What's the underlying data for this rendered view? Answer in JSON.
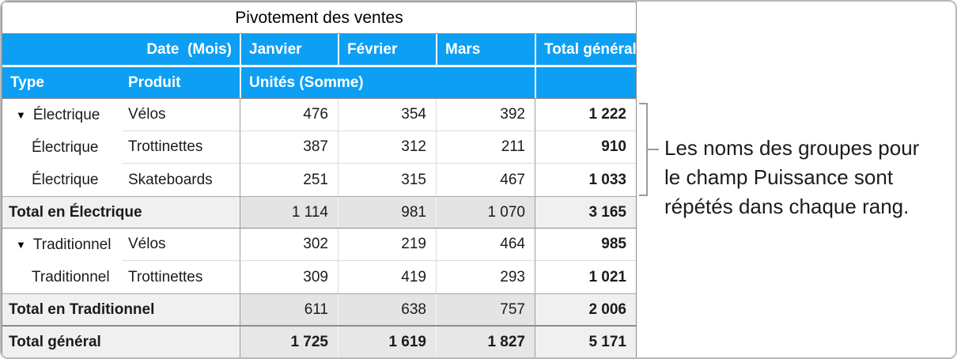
{
  "colors": {
    "header_blue": "#0d9ff4",
    "subtotal_month_bg": "#e4e4e5",
    "subtotal_label_bg": "#f0f0f0",
    "grand_month_bg": "#e7e7e8",
    "border_strong": "#8d8d8d",
    "border_medium": "#9e9e9e",
    "border_light": "#dcdcdc",
    "bracket_gray": "#9a9a9a",
    "text_dark": "#1b1b1b"
  },
  "table": {
    "title": "Pivotement des ventes",
    "disclosure": "▼",
    "header_row1": {
      "label": "Date  (Mois)",
      "col_janvier": "Janvier",
      "col_fevrier": "Février",
      "col_mars": "Mars",
      "col_total": "Total général"
    },
    "header_row2": {
      "type": "Type",
      "produit": "Produit",
      "values_label": "Unités (Somme)"
    },
    "rows": [
      {
        "type": "Électrique",
        "produit": "Vélos",
        "janvier": "476",
        "fevrier": "354",
        "mars": "392",
        "total": "1 222"
      },
      {
        "type": "Électrique",
        "produit": "Trottinettes",
        "janvier": "387",
        "fevrier": "312",
        "mars": "211",
        "total": "910"
      },
      {
        "type": "Électrique",
        "produit": "Skateboards",
        "janvier": "251",
        "fevrier": "315",
        "mars": "467",
        "total": "1 033"
      },
      {
        "label": "Total en Électrique",
        "janvier": "1 114",
        "fevrier": "981",
        "mars": "1 070",
        "total": "3 165"
      },
      {
        "type": "Traditionnel",
        "produit": "Vélos",
        "janvier": "302",
        "fevrier": "219",
        "mars": "464",
        "total": "985"
      },
      {
        "type": "Traditionnel",
        "produit": "Trottinettes",
        "janvier": "309",
        "fevrier": "419",
        "mars": "293",
        "total": "1 021"
      },
      {
        "label": "Total en Traditionnel",
        "janvier": "611",
        "fevrier": "638",
        "mars": "757",
        "total": "2 006"
      },
      {
        "label": "Total général",
        "janvier": "1 725",
        "fevrier": "1 619",
        "mars": "1 827",
        "total": "5 171"
      }
    ]
  },
  "annotation": {
    "lines": [
      "Les noms des groupes pour",
      "le champ Puissance sont",
      "répétés dans chaque rang."
    ]
  }
}
